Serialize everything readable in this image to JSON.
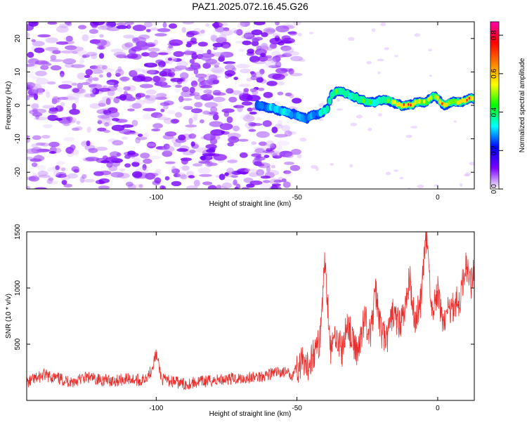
{
  "chart_data": [
    {
      "type": "heatmap",
      "title": "PAZ1.2025.072.16.45.G26",
      "xlabel": "Height of straight line (km)",
      "ylabel": "Frequency (Hz)",
      "xlim": [
        -146,
        13
      ],
      "ylim": [
        -25,
        25
      ],
      "x_ticks": [
        -100,
        -50,
        0
      ],
      "x_tick_labels": [
        "-100",
        "-50",
        "0"
      ],
      "y_ticks": [
        -20,
        -10,
        0,
        10,
        20
      ],
      "y_tick_labels": [
        "-20",
        "-10",
        "0",
        "10",
        "20"
      ],
      "colorbar": {
        "label": "Normalized spectral amplitude",
        "range": [
          0,
          0.87
        ],
        "ticks": [
          0,
          0.2,
          0.4,
          0.6,
          0.8
        ],
        "tick_labels": [
          "0.0",
          "0.2",
          "0.4",
          "0.6",
          "0.8"
        ],
        "colormap": [
          "#ffffff",
          "#7a00ff",
          "#0000ff",
          "#00ffff",
          "#00ff00",
          "#ffff00",
          "#ff8000",
          "#ff0000",
          "#ff00aa"
        ]
      },
      "signal_track": {
        "x": [
          -64,
          -58,
          -54,
          -50,
          -47,
          -44,
          -41,
          -39,
          -38,
          -36,
          -34,
          -31,
          -28,
          -25,
          -22,
          -19,
          -16,
          -13,
          -10,
          -7,
          -4,
          -1,
          2,
          5,
          8,
          11,
          13
        ],
        "frequency": [
          0,
          -1,
          -2,
          -3,
          -4,
          -3,
          -2,
          -1,
          3,
          4,
          4,
          3,
          2,
          1,
          1,
          2,
          1,
          0,
          0,
          1,
          1,
          3,
          0,
          1,
          1,
          2,
          2
        ],
        "amplitude": [
          0.25,
          0.3,
          0.3,
          0.25,
          0.3,
          0.25,
          0.35,
          0.35,
          0.4,
          0.45,
          0.35,
          0.4,
          0.4,
          0.45,
          0.35,
          0.4,
          0.5,
          0.7,
          0.8,
          0.55,
          0.45,
          0.5,
          0.7,
          0.5,
          0.6,
          0.75,
          0.5
        ]
      },
      "noise_region_xlim": [
        -146,
        -50
      ],
      "noise_amplitude_range": [
        0.02,
        0.12
      ]
    },
    {
      "type": "line",
      "xlabel": "Height of straight line (km)",
      "ylabel": "SNR (10 * v/v)",
      "xlim": [
        -146,
        13
      ],
      "ylim": [
        0,
        1500
      ],
      "x_ticks": [
        -100,
        -50,
        0
      ],
      "x_tick_labels": [
        "-100",
        "-50",
        "0"
      ],
      "y_ticks": [
        500,
        1000,
        1500
      ],
      "y_tick_labels": [
        "500",
        "1000",
        "1500"
      ],
      "color": "#e8312f",
      "series": [
        {
          "x": [
            -146,
            -140,
            -135,
            -130,
            -125,
            -120,
            -115,
            -110,
            -105,
            -102,
            -100,
            -98,
            -95,
            -90,
            -85,
            -80,
            -75,
            -70,
            -65,
            -60,
            -55,
            -52,
            -50,
            -48,
            -47,
            -45,
            -42,
            -40,
            -38,
            -36,
            -34,
            -32,
            -30,
            -28,
            -26,
            -24,
            -22,
            -20,
            -18,
            -16,
            -14,
            -12,
            -10,
            -8,
            -6,
            -4,
            -2,
            0,
            2,
            4,
            6,
            8,
            10,
            12,
            13
          ],
          "values": [
            160,
            230,
            200,
            170,
            210,
            190,
            180,
            200,
            180,
            260,
            420,
            190,
            180,
            150,
            170,
            180,
            200,
            200,
            210,
            240,
            260,
            230,
            300,
            350,
            260,
            400,
            520,
            1270,
            450,
            620,
            440,
            720,
            500,
            460,
            780,
            580,
            980,
            620,
            550,
            800,
            700,
            760,
            1100,
            720,
            900,
            1500,
            800,
            980,
            700,
            820,
            880,
            900,
            1250,
            1050,
            1270
          ]
        }
      ]
    }
  ]
}
